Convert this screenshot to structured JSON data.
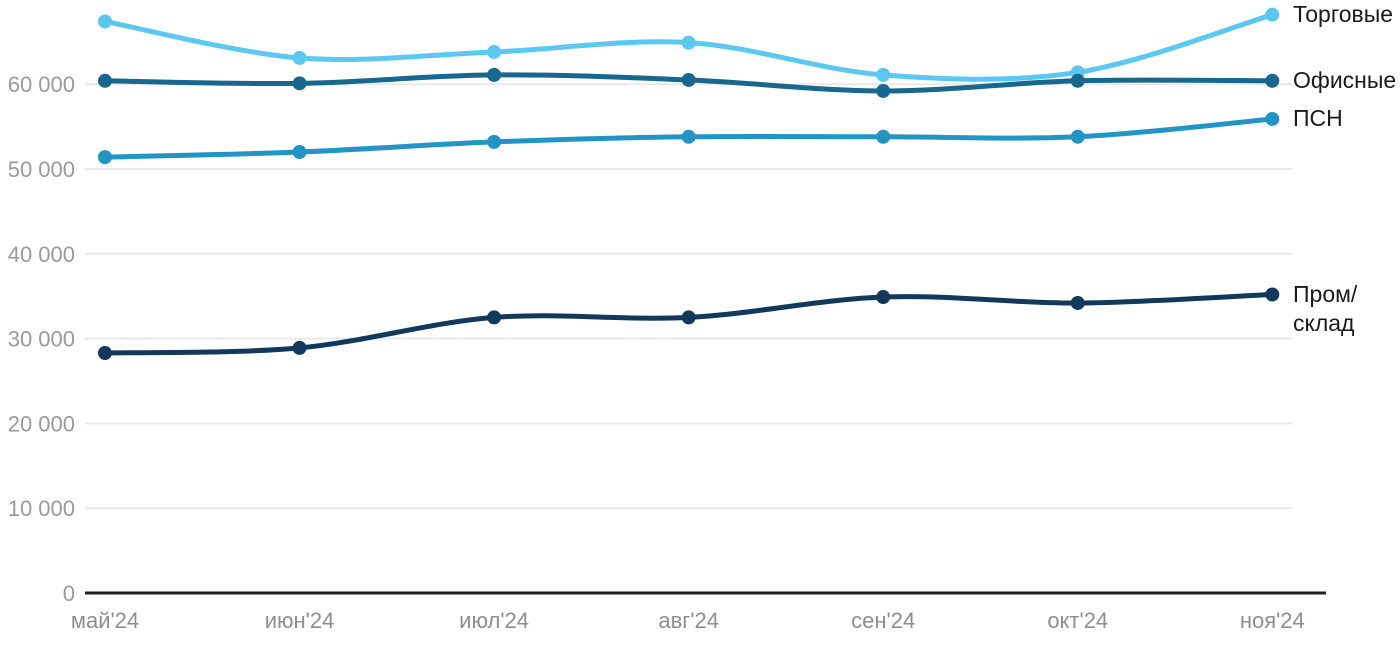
{
  "chart_data": {
    "type": "line",
    "title": "",
    "xlabel": "",
    "ylabel": "",
    "categories": [
      "май'24",
      "июн'24",
      "июл'24",
      "авг'24",
      "сен'24",
      "окт'24",
      "ноя'24"
    ],
    "series": [
      {
        "name": "Торговые",
        "legend_lines": [
          "Торговые"
        ],
        "color": "#5bc8f2",
        "values": [
          67400,
          63100,
          63800,
          64900,
          61100,
          61400,
          68200
        ]
      },
      {
        "name": "Офисные",
        "legend_lines": [
          "Офисные"
        ],
        "color": "#17678e",
        "values": [
          60400,
          60100,
          61100,
          60500,
          59200,
          60400,
          60400
        ]
      },
      {
        "name": "ПСН",
        "legend_lines": [
          "ПСН"
        ],
        "color": "#2095c6",
        "values": [
          51400,
          52000,
          53200,
          53800,
          53800,
          53800,
          55900
        ]
      },
      {
        "name": "Пром/склад",
        "legend_lines": [
          "Пром/",
          "склад"
        ],
        "color": "#12395c",
        "values": [
          28300,
          28900,
          32500,
          32500,
          34900,
          34200,
          35200
        ]
      }
    ],
    "y_ticks": [
      {
        "value": 0,
        "label": "0"
      },
      {
        "value": 10000,
        "label": "10 000"
      },
      {
        "value": 20000,
        "label": "20 000"
      },
      {
        "value": 30000,
        "label": "30 000"
      },
      {
        "value": 40000,
        "label": "40 000"
      },
      {
        "value": 50000,
        "label": "50 000"
      },
      {
        "value": 60000,
        "label": "60 000"
      }
    ],
    "ylim": [
      0,
      70000
    ],
    "grid": "horizontal",
    "legend_position": "right"
  },
  "styles": {
    "grid_color": "#e9e9e9",
    "axis_color": "#1f1f1f",
    "y_tick_color": "#9a9a9a",
    "x_tick_color": "#8e8e8e",
    "legend_text_color": "#1a1a1a"
  }
}
